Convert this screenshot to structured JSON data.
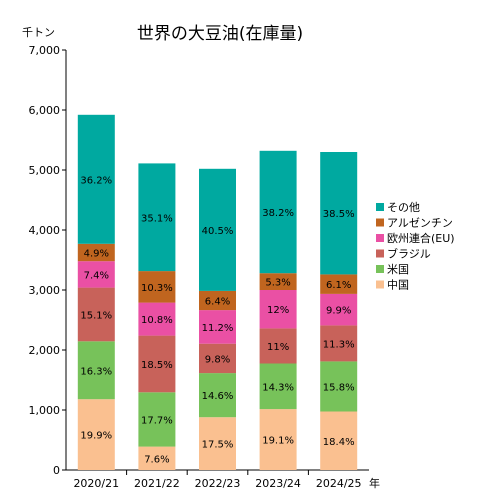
{
  "chart_data": {
    "type": "bar",
    "stacked": true,
    "title": "世界の大豆油(在庫量)",
    "y_unit": "千トン",
    "x_unit": "年",
    "ylim": [
      0,
      7000
    ],
    "y_ticks": [
      0,
      1000,
      2000,
      3000,
      4000,
      5000,
      6000,
      7000
    ],
    "y_tick_labels": [
      "0",
      "1,000",
      "2,000",
      "3,000",
      "4,000",
      "5,000",
      "6,000",
      "7,000"
    ],
    "grid": false,
    "legend_position": "right",
    "categories": [
      "2020/21",
      "2021/22",
      "2022/23",
      "2023/24",
      "2024/25"
    ],
    "totals": [
      5920,
      5110,
      5020,
      5320,
      5300
    ],
    "series": [
      {
        "name": "中国",
        "color": "#fac090",
        "values": [
          1180,
          390,
          880,
          1015,
          975
        ],
        "labels": [
          "19.9%",
          "7.6%",
          "17.5%",
          "19.1%",
          "18.4%"
        ]
      },
      {
        "name": "米国",
        "color": "#77c25a",
        "values": [
          965,
          905,
          735,
          760,
          835
        ],
        "labels": [
          "16.3%",
          "17.7%",
          "14.6%",
          "14.3%",
          "15.8%"
        ]
      },
      {
        "name": "ブラジル",
        "color": "#c8625a",
        "values": [
          895,
          945,
          490,
          585,
          600
        ],
        "labels": [
          "15.1%",
          "18.5%",
          "9.8%",
          "11%",
          "11.3%"
        ]
      },
      {
        "name": "欧州連合(EU)",
        "color": "#ea50a4",
        "values": [
          440,
          550,
          560,
          640,
          525
        ],
        "labels": [
          "7.4%",
          "10.8%",
          "11.2%",
          "12%",
          "9.9%"
        ]
      },
      {
        "name": "アルゼンチン",
        "color": "#c0651f",
        "values": [
          290,
          525,
          320,
          280,
          325
        ],
        "labels": [
          "4.9%",
          "10.3%",
          "6.4%",
          "5.3%",
          "6.1%"
        ]
      },
      {
        "name": "その他",
        "color": "#00a9a0",
        "values": [
          2150,
          1795,
          2035,
          2040,
          2040
        ],
        "labels": [
          "36.2%",
          "35.1%",
          "40.5%",
          "38.2%",
          "38.5%"
        ]
      }
    ]
  }
}
